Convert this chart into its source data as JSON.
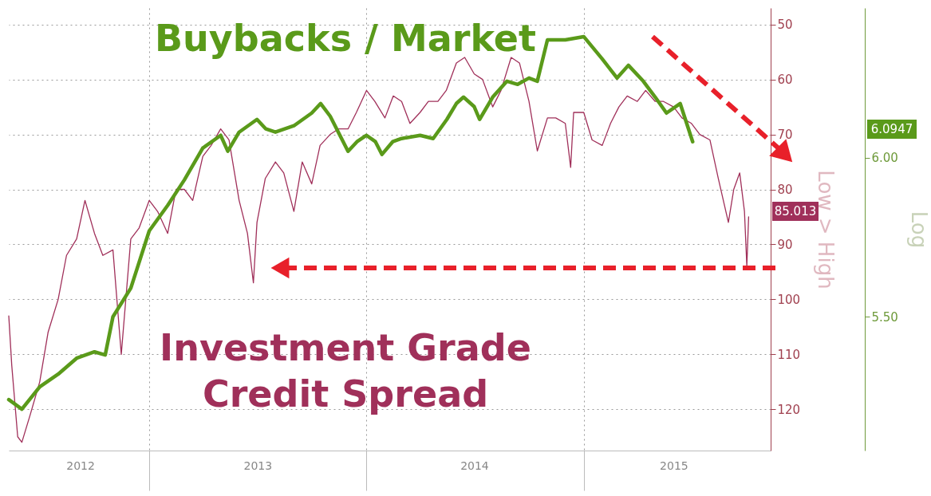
{
  "chart_data": {
    "type": "line",
    "ylabel": "Low > High",
    "y2label": "Log",
    "xlim": [
      "2012-05-10",
      "2015-11-11"
    ],
    "xticks": [
      {
        "value": "2012-09-07",
        "label": "2012"
      },
      {
        "value": "2013-01-01",
        "label": null
      },
      {
        "value": "2013-07-02",
        "label": "2013"
      },
      {
        "value": "2014-01-01",
        "label": null
      },
      {
        "value": "2014-07-01",
        "label": "2014"
      },
      {
        "value": "2015-01-01",
        "label": null
      },
      {
        "value": "2015-06-01",
        "label": "2015"
      }
    ],
    "ylim": [
      127.5,
      47
    ],
    "yticks": [
      50,
      60,
      70,
      80,
      90,
      100,
      110,
      120
    ],
    "y2lim": [
      5.08,
      6.47
    ],
    "y2ticks": [
      {
        "value": 6.0,
        "label": "6.00"
      },
      {
        "value": 5.5,
        "label": "5.50"
      }
    ],
    "grid": true,
    "series": [
      {
        "name": "Investment Grade\nCredit Spread",
        "color": "#a0305a",
        "x": [
          "2012-05-10",
          "2012-05-15",
          "2012-05-25",
          "2012-06-01",
          "2012-06-15",
          "2012-07-01",
          "2012-07-15",
          "2012-08-01",
          "2012-08-15",
          "2012-09-01",
          "2012-09-15",
          "2012-10-01",
          "2012-10-15",
          "2012-11-01",
          "2012-11-15",
          "2012-12-01",
          "2012-12-15",
          "2013-01-01",
          "2013-01-15",
          "2013-02-01",
          "2013-02-15",
          "2013-03-01",
          "2013-03-15",
          "2013-04-01",
          "2013-04-15",
          "2013-05-01",
          "2013-05-15",
          "2013-06-01",
          "2013-06-15",
          "2013-06-25",
          "2013-07-01",
          "2013-07-15",
          "2013-08-01",
          "2013-08-15",
          "2013-09-01",
          "2013-09-15",
          "2013-10-01",
          "2013-10-15",
          "2013-11-01",
          "2013-11-15",
          "2013-12-01",
          "2013-12-15",
          "2014-01-01",
          "2014-01-15",
          "2014-02-01",
          "2014-02-15",
          "2014-03-01",
          "2014-03-15",
          "2014-04-01",
          "2014-04-15",
          "2014-05-01",
          "2014-05-15",
          "2014-06-01",
          "2014-06-15",
          "2014-07-01",
          "2014-07-15",
          "2014-08-01",
          "2014-08-15",
          "2014-09-01",
          "2014-09-15",
          "2014-10-01",
          "2014-10-15",
          "2014-11-01",
          "2014-11-15",
          "2014-12-01",
          "2014-12-10",
          "2014-12-15",
          "2015-01-01",
          "2015-01-15",
          "2015-02-01",
          "2015-02-15",
          "2015-03-01",
          "2015-03-15",
          "2015-04-01",
          "2015-04-15",
          "2015-05-01",
          "2015-05-15",
          "2015-06-01",
          "2015-06-15",
          "2015-07-01",
          "2015-07-15",
          "2015-08-01",
          "2015-08-15",
          "2015-09-01",
          "2015-09-10",
          "2015-09-20",
          "2015-09-28",
          "2015-10-02",
          "2015-10-05"
        ],
        "values": [
          103,
          112,
          125,
          126,
          121,
          115,
          106,
          100,
          92,
          89,
          82,
          88,
          92,
          91,
          110,
          89,
          87,
          82,
          84,
          88,
          80,
          80,
          82,
          74,
          72,
          69,
          71,
          82,
          88,
          97,
          86,
          78,
          75,
          77,
          84,
          75,
          79,
          72,
          70,
          69,
          69,
          66,
          62,
          64,
          67,
          63,
          64,
          68,
          66,
          64,
          64,
          62,
          57,
          56,
          59,
          60,
          65,
          62,
          56,
          57,
          64,
          73,
          67,
          67,
          68,
          76,
          66,
          66,
          71,
          72,
          68,
          65,
          63,
          64,
          62,
          64,
          64,
          65,
          67,
          68,
          70,
          71,
          78,
          86,
          80,
          77,
          84,
          94,
          85
        ]
      },
      {
        "name": "Buybacks / Market",
        "color": "#5a9a1a",
        "axis": "y2",
        "x": [
          "2012-05-10",
          "2012-06-01",
          "2012-07-01",
          "2012-08-01",
          "2012-09-01",
          "2012-10-01",
          "2012-10-19",
          "2012-11-01",
          "2012-12-01",
          "2013-01-01",
          "2013-02-01",
          "2013-03-01",
          "2013-04-01",
          "2013-05-01",
          "2013-05-13",
          "2013-06-01",
          "2013-07-01",
          "2013-07-16",
          "2013-08-01",
          "2013-09-01",
          "2013-10-01",
          "2013-10-16",
          "2013-11-01",
          "2013-12-01",
          "2013-12-16",
          "2014-01-01",
          "2014-01-16",
          "2014-01-27",
          "2014-02-14",
          "2014-03-01",
          "2014-04-01",
          "2014-04-23",
          "2014-05-16",
          "2014-06-01",
          "2014-06-13",
          "2014-07-01",
          "2014-07-10",
          "2014-08-01",
          "2014-08-25",
          "2014-09-12",
          "2014-10-01",
          "2014-10-15",
          "2014-11-01",
          "2014-12-01",
          "2015-01-01",
          "2015-02-01",
          "2015-02-26",
          "2015-03-17",
          "2015-04-11",
          "2015-05-01",
          "2015-05-20",
          "2015-06-12",
          "2015-07-03"
        ],
        "values": [
          5.24,
          5.21,
          5.28,
          5.32,
          5.37,
          5.39,
          5.38,
          5.5,
          5.59,
          5.77,
          5.85,
          5.93,
          6.03,
          6.07,
          6.02,
          6.08,
          6.12,
          6.09,
          6.08,
          6.1,
          6.14,
          6.17,
          6.13,
          6.02,
          6.05,
          6.07,
          6.05,
          6.01,
          6.05,
          6.06,
          6.07,
          6.06,
          6.12,
          6.17,
          6.19,
          6.16,
          6.12,
          6.19,
          6.24,
          6.23,
          6.25,
          6.24,
          6.37,
          6.37,
          6.38,
          6.31,
          6.25,
          6.29,
          6.24,
          6.19,
          6.14,
          6.17,
          6.05
        ]
      }
    ],
    "annotations": [
      "85.013",
      "6.0947"
    ]
  }
}
